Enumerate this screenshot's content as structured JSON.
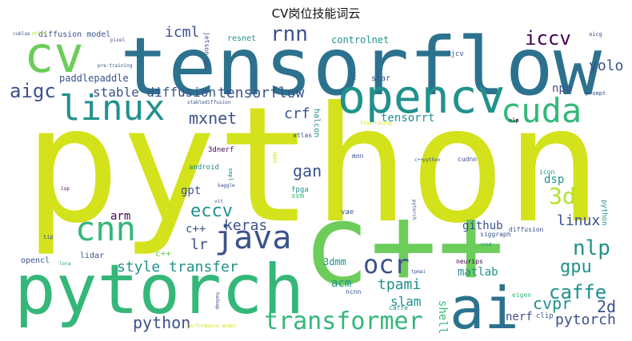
{
  "title": "CV岗位技能词云",
  "colors": {
    "lime": "#d3e21a",
    "yellowgreen": "#b5de2b",
    "green": "#6ccd5a",
    "seagreen": "#35b779",
    "teal": "#21918c",
    "steelblue": "#2c728e",
    "navy": "#3b528b",
    "indigo": "#472d7b",
    "purple": "#440154"
  },
  "words": [
    {
      "text": "python",
      "color": "lime"
    },
    {
      "text": "tensorflow",
      "color": "steelblue"
    },
    {
      "text": "c++",
      "color": "green"
    },
    {
      "text": "pytorch",
      "color": "seagreen"
    },
    {
      "text": "cv",
      "color": "green"
    },
    {
      "text": "opencv",
      "color": "teal"
    },
    {
      "text": "ai",
      "color": "steelblue"
    },
    {
      "text": "linux",
      "color": "teal"
    },
    {
      "text": "cuda",
      "color": "seagreen"
    },
    {
      "text": "java",
      "color": "navy"
    },
    {
      "text": "cnn",
      "color": "seagreen"
    },
    {
      "text": "transformer",
      "color": "seagreen"
    },
    {
      "text": "ocr",
      "color": "navy"
    },
    {
      "text": "rnn",
      "color": "navy"
    },
    {
      "text": "iccv",
      "color": "purple"
    },
    {
      "text": "aigc",
      "color": "navy"
    },
    {
      "text": "caffe",
      "color": "teal"
    },
    {
      "text": "nlp",
      "color": "teal"
    },
    {
      "text": "3d",
      "color": "yellowgreen"
    },
    {
      "text": "gpu",
      "color": "teal"
    },
    {
      "text": "eccv",
      "color": "teal"
    },
    {
      "text": "style transfer",
      "color": "teal"
    },
    {
      "text": "stable diffusion",
      "color": "navy"
    },
    {
      "text": "tensorflow",
      "color": "navy"
    },
    {
      "text": "mxnet",
      "color": "navy"
    },
    {
      "text": "keras",
      "color": "navy"
    },
    {
      "text": "gan",
      "color": "navy"
    },
    {
      "text": "crf",
      "color": "navy"
    },
    {
      "text": "python",
      "color": "navy"
    },
    {
      "text": "pytorch",
      "color": "navy"
    },
    {
      "text": "cvpr",
      "color": "teal"
    },
    {
      "text": "2d",
      "color": "navy"
    },
    {
      "text": "tpami",
      "color": "teal"
    },
    {
      "text": "linux",
      "color": "navy"
    },
    {
      "text": "icml",
      "color": "navy"
    },
    {
      "text": "yolo",
      "color": "navy"
    },
    {
      "text": "lr",
      "color": "navy"
    },
    {
      "text": "slam",
      "color": "teal"
    },
    {
      "text": "paddlepaddle",
      "color": "navy"
    },
    {
      "text": "tensorrt",
      "color": "teal"
    },
    {
      "text": "github",
      "color": "navy"
    },
    {
      "text": "matlab",
      "color": "teal"
    },
    {
      "text": "npu",
      "color": "navy"
    },
    {
      "text": "dsp",
      "color": "teal"
    },
    {
      "text": "shell",
      "color": "seagreen"
    },
    {
      "text": "c++",
      "color": "navy"
    },
    {
      "text": "gpt",
      "color": "navy"
    },
    {
      "text": "arm",
      "color": "purple"
    },
    {
      "text": "nerf",
      "color": "navy"
    },
    {
      "text": "c++",
      "color": "green"
    },
    {
      "text": "acm",
      "color": "teal"
    },
    {
      "text": "3dmm",
      "color": "teal"
    },
    {
      "text": "controlnet",
      "color": "teal"
    },
    {
      "text": "resnet",
      "color": "teal"
    },
    {
      "text": "diffusion model",
      "color": "navy"
    },
    {
      "text": "star",
      "color": "navy"
    },
    {
      "text": "c",
      "color": "navy"
    },
    {
      "text": "ijcv",
      "color": "navy"
    },
    {
      "text": "lidar",
      "color": "navy"
    },
    {
      "text": "opencl",
      "color": "navy"
    },
    {
      "text": "clip",
      "color": "navy"
    },
    {
      "text": "vae",
      "color": "navy"
    },
    {
      "text": "fpga",
      "color": "teal"
    },
    {
      "text": "svm",
      "color": "seagreen"
    },
    {
      "text": "3dnerf",
      "color": "purple"
    },
    {
      "text": "android",
      "color": "teal"
    },
    {
      "text": "halcon",
      "color": "teal"
    },
    {
      "text": "atlas",
      "color": "navy"
    },
    {
      "text": "mnn",
      "color": "navy"
    },
    {
      "text": "cudnn",
      "color": "navy"
    },
    {
      "text": "python",
      "color": "teal"
    },
    {
      "text": "siggraph",
      "color": "navy"
    },
    {
      "text": "neurips",
      "color": "purple"
    },
    {
      "text": "ncnn",
      "color": "navy"
    },
    {
      "text": "caffe",
      "color": "teal"
    },
    {
      "text": "diffusion",
      "color": "navy"
    },
    {
      "text": "eigen",
      "color": "seagreen"
    },
    {
      "text": "icon",
      "color": "teal"
    },
    {
      "text": "jetson gpu",
      "color": "navy"
    },
    {
      "text": "aicg",
      "color": "navy"
    },
    {
      "text": "prompt",
      "color": "navy"
    },
    {
      "text": "nlp",
      "color": "purple"
    },
    {
      "text": "cublas",
      "color": "navy"
    },
    {
      "text": "pre-training",
      "color": "navy"
    },
    {
      "text": "stablediffusion",
      "color": "navy"
    },
    {
      "text": "fine-tuning",
      "color": "lime"
    },
    {
      "text": "isp",
      "color": "purple"
    },
    {
      "text": "tip",
      "color": "navy"
    },
    {
      "text": "lora",
      "color": "teal"
    },
    {
      "text": "kaggle",
      "color": "navy"
    },
    {
      "text": "vit",
      "color": "navy"
    },
    {
      "text": "smpl",
      "color": "teal"
    },
    {
      "text": "oppo",
      "color": "lime"
    },
    {
      "text": "c++python",
      "color": "navy"
    },
    {
      "text": "pytorch",
      "color": "navy"
    },
    {
      "text": "resd",
      "color": "teal"
    },
    {
      "text": "tpmai",
      "color": "navy"
    },
    {
      "text": "hadoop",
      "color": "navy"
    },
    {
      "text": "performance model",
      "color": "lime"
    },
    {
      "text": "python",
      "color": "yellowgreen"
    },
    {
      "text": "pixel",
      "color": "navy"
    }
  ]
}
